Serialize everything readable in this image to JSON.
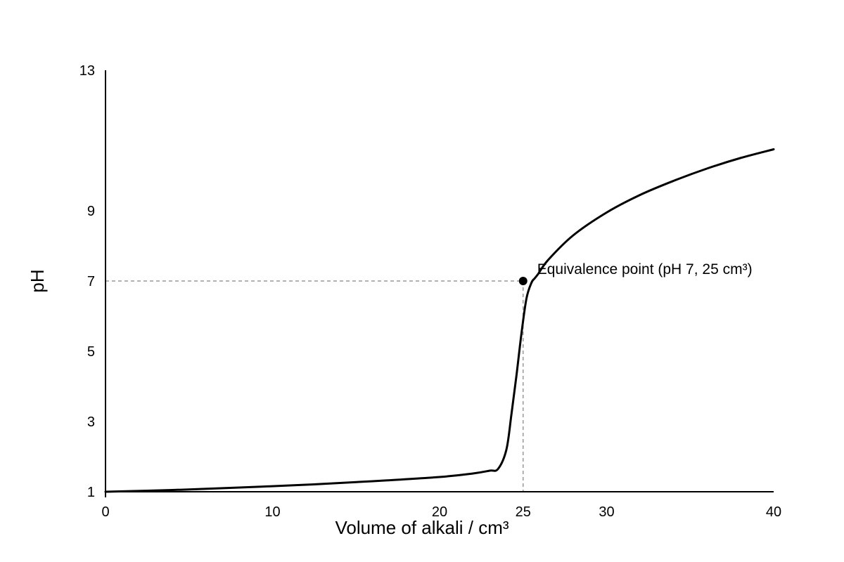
{
  "chart_data": {
    "type": "line",
    "title": "",
    "xlabel": "Volume of alkali / cm³",
    "ylabel": "pH",
    "xlim": [
      0,
      40
    ],
    "ylim": [
      1,
      13
    ],
    "x_ticks": [
      {
        "value": 0,
        "label": "0"
      },
      {
        "value": 10,
        "label": "10"
      },
      {
        "value": 20,
        "label": "20"
      },
      {
        "value": 25,
        "label": "25"
      },
      {
        "value": 30,
        "label": "30"
      },
      {
        "value": 40,
        "label": "40"
      }
    ],
    "y_ticks": [
      {
        "value": 1,
        "label": "1"
      },
      {
        "value": 3,
        "label": "3"
      },
      {
        "value": 5,
        "label": "5"
      },
      {
        "value": 7,
        "label": "7"
      },
      {
        "value": 9,
        "label": "9"
      },
      {
        "value": 13,
        "label": "13"
      }
    ],
    "grid": false,
    "legend": "none",
    "series": [
      {
        "color": "#000000",
        "x": [
          0,
          4,
          8,
          12,
          16,
          20,
          22,
          23,
          23.5,
          24,
          24.3,
          24.6,
          24.9,
          25.2,
          25.5,
          25.7,
          25.9,
          26.5,
          28,
          30,
          32,
          34,
          36,
          38,
          40
        ],
        "y": [
          1.0,
          1.05,
          1.12,
          1.2,
          1.3,
          1.42,
          1.52,
          1.6,
          1.65,
          2.2,
          3.2,
          4.3,
          5.5,
          6.5,
          6.95,
          7.08,
          7.2,
          7.6,
          8.3,
          8.95,
          9.45,
          9.85,
          10.2,
          10.5,
          10.75
        ]
      }
    ],
    "guide_lines": {
      "color": "#999999",
      "x": 25,
      "y": 7
    },
    "annotations": [
      {
        "x": 25,
        "y": 7,
        "text": "Equivalence point (pH 7, 25 cm³)"
      }
    ]
  }
}
